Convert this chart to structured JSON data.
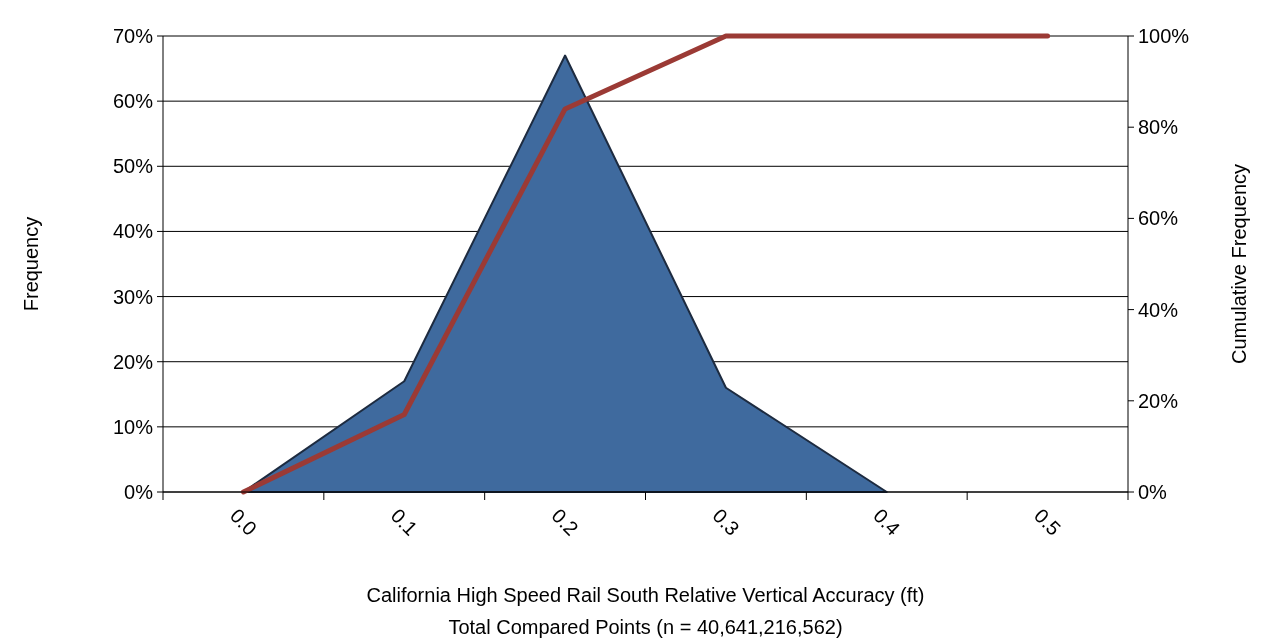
{
  "chart_data": {
    "type": "area",
    "categories": [
      "0.0",
      "0.1",
      "0.2",
      "0.3",
      "0.4",
      "0.5"
    ],
    "series": [
      {
        "color": "#3f6a9e",
        "values": [
          0,
          17,
          67,
          16,
          0,
          null
        ]
      },
      {
        "type": "line",
        "axis": "y2",
        "color": "#9b3a35",
        "values": [
          0,
          17,
          84,
          100,
          100,
          100
        ]
      }
    ],
    "ylabel": "Frequency",
    "y2label": "Cumulative Frequency",
    "xlabel": "California High Speed Rail South Relative Vertical Accuracy (ft)",
    "annotations": [
      "Total Compared Points (n = 40,641,216,562)"
    ],
    "ylim": [
      0,
      70
    ],
    "yticks": [
      {
        "value": 0,
        "label": "0%"
      },
      {
        "value": 10,
        "label": "10%"
      },
      {
        "value": 20,
        "label": "20%"
      },
      {
        "value": 30,
        "label": "30%"
      },
      {
        "value": 40,
        "label": "40%"
      },
      {
        "value": 50,
        "label": "50%"
      },
      {
        "value": 60,
        "label": "60%"
      },
      {
        "value": 70,
        "label": "70%"
      }
    ],
    "y2lim": [
      0,
      100
    ],
    "y2ticks": [
      {
        "value": 0,
        "label": "0%"
      },
      {
        "value": 20,
        "label": "20%"
      },
      {
        "value": 40,
        "label": "40%"
      },
      {
        "value": 60,
        "label": "60%"
      },
      {
        "value": 80,
        "label": "80%"
      },
      {
        "value": 100,
        "label": "100%"
      }
    ],
    "grid": "y"
  }
}
